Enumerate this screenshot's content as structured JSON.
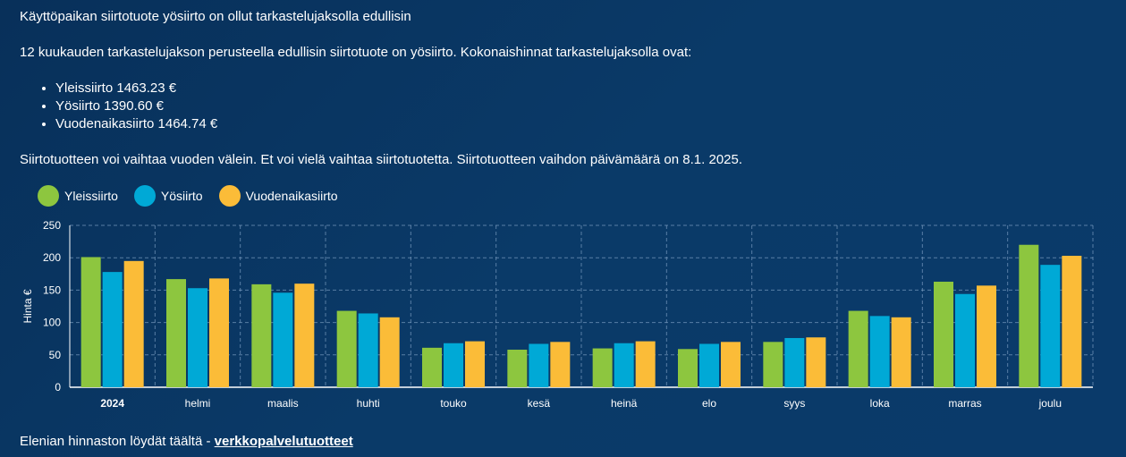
{
  "headline": "Käyttöpaikan siirtotuote yösiirto on ollut tarkastelujaksolla edullisin",
  "intro": "12 kuukauden tarkastelujakson perusteella edullisin siirtotuote on yösiirto. Kokonaishinnat tarkastelujaksolla ovat:",
  "totals": [
    "Yleissiirto 1463.23 €",
    "Yösiirto 1390.60 €",
    "Vuodenaikasiirto 1464.74 €"
  ],
  "note": "Siirtotuotteen voi vaihtaa vuoden välein. Et voi vielä vaihtaa siirtotuotetta. Siirtotuotteen vaihdon päivämäärä on 8.1. 2025.",
  "footer": {
    "text": "Elenian hinnaston löydät täältä - ",
    "link_label": "verkkopalvelutuotteet"
  },
  "chart_data": {
    "type": "bar",
    "ylabel": "Hinta €",
    "xlabel": "",
    "ylim": [
      0,
      250
    ],
    "yticks": [
      0,
      50,
      100,
      150,
      200,
      250
    ],
    "grid": true,
    "legend_position": "top-left",
    "categories": [
      "2024",
      "helmi",
      "maalis",
      "huhti",
      "touko",
      "kesä",
      "heinä",
      "elo",
      "syys",
      "loka",
      "marras",
      "joulu"
    ],
    "series": [
      {
        "name": "Yleissiirto",
        "color": "#8dc63f",
        "values": [
          201,
          167,
          159,
          118,
          61,
          58,
          60,
          59,
          70,
          118,
          163,
          220
        ]
      },
      {
        "name": "Yösiirto",
        "color": "#00a9d6",
        "values": [
          178,
          153,
          146,
          114,
          68,
          67,
          68,
          67,
          76,
          110,
          144,
          189
        ]
      },
      {
        "name": "Vuodenaikasiirto",
        "color": "#fbbc38",
        "values": [
          195,
          168,
          160,
          108,
          71,
          70,
          71,
          70,
          77,
          108,
          157,
          203
        ]
      }
    ]
  }
}
